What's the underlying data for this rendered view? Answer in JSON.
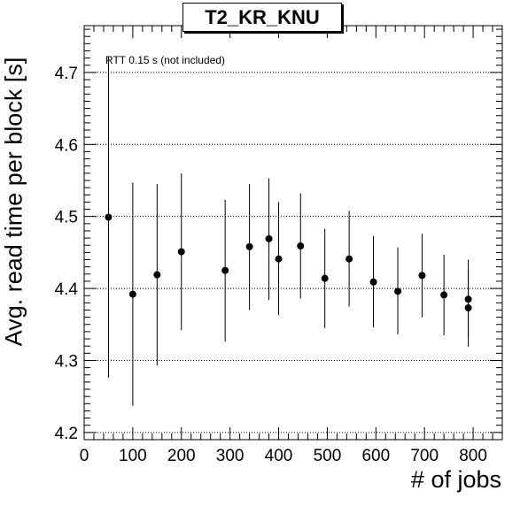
{
  "chart_data": {
    "type": "scatter",
    "title": "T2_KR_KNU",
    "xlabel": "# of jobs",
    "ylabel": "Avg. read time per block [s]",
    "annotation": "RTT 0.15 s (not included)",
    "xlim": [
      0,
      860
    ],
    "ylim": [
      4.19,
      4.765
    ],
    "xticks": [
      0,
      100,
      200,
      300,
      400,
      500,
      600,
      700,
      800
    ],
    "xtick_labels": [
      "0",
      "100",
      "200",
      "300",
      "400",
      "500",
      "600",
      "700",
      "800"
    ],
    "yticks": [
      4.2,
      4.3,
      4.4,
      4.5,
      4.6,
      4.7
    ],
    "ytick_labels": [
      "4.2",
      "4.3",
      "4.4",
      "4.5",
      "4.6",
      "4.7"
    ],
    "grid": "horizontal-dotted",
    "points": [
      {
        "x": 50,
        "y": 4.499,
        "ylo": 4.276,
        "yhi": 4.722
      },
      {
        "x": 100,
        "y": 4.392,
        "ylo": 4.237,
        "yhi": 4.547
      },
      {
        "x": 150,
        "y": 4.419,
        "ylo": 4.293,
        "yhi": 4.545
      },
      {
        "x": 200,
        "y": 4.451,
        "ylo": 4.342,
        "yhi": 4.56
      },
      {
        "x": 290,
        "y": 4.425,
        "ylo": 4.326,
        "yhi": 4.523
      },
      {
        "x": 340,
        "y": 4.458,
        "ylo": 4.37,
        "yhi": 4.545
      },
      {
        "x": 380,
        "y": 4.469,
        "ylo": 4.384,
        "yhi": 4.553
      },
      {
        "x": 400,
        "y": 4.441,
        "ylo": 4.363,
        "yhi": 4.52
      },
      {
        "x": 445,
        "y": 4.459,
        "ylo": 4.386,
        "yhi": 4.532
      },
      {
        "x": 495,
        "y": 4.414,
        "ylo": 4.345,
        "yhi": 4.483
      },
      {
        "x": 545,
        "y": 4.441,
        "ylo": 4.375,
        "yhi": 4.508
      },
      {
        "x": 595,
        "y": 4.409,
        "ylo": 4.346,
        "yhi": 4.473
      },
      {
        "x": 645,
        "y": 4.396,
        "ylo": 4.336,
        "yhi": 4.457
      },
      {
        "x": 695,
        "y": 4.418,
        "ylo": 4.36,
        "yhi": 4.476
      },
      {
        "x": 740,
        "y": 4.391,
        "ylo": 4.335,
        "yhi": 4.447
      },
      {
        "x": 790,
        "y": 4.385,
        "ylo": 4.331,
        "yhi": 4.44
      },
      {
        "x": 790,
        "y": 4.373,
        "ylo": 4.319,
        "yhi": 4.427
      }
    ]
  }
}
